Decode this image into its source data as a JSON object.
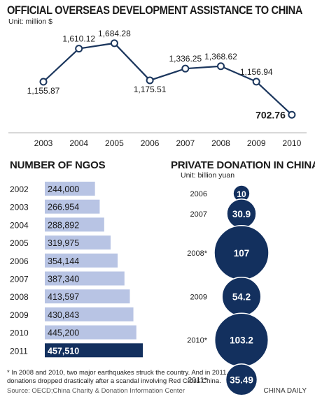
{
  "title": "OFFICIAL OVERSEAS DEVELOPMENT ASSISTANCE TO CHINA",
  "oda_unit": "Unit: million $",
  "oda_chart": {
    "type": "line",
    "x": [
      "2003",
      "2004",
      "2005",
      "2006",
      "2007",
      "2008",
      "2009",
      "2010"
    ],
    "y": [
      1155.87,
      1610.12,
      1684.28,
      1175.51,
      1336.25,
      1368.62,
      1156.94,
      702.76
    ],
    "labels": [
      "1,155.87",
      "1,610.12",
      "1,684.28",
      "1,175.51",
      "1,336.25",
      "1,368.62",
      "1,156.94",
      "702.76"
    ],
    "highlight_index": 7,
    "ylim": [
      600,
      1750
    ],
    "line_color": "#1b365d"
  },
  "ngo_title": "NUMBER OF NGOS",
  "ngo_chart": {
    "type": "bar",
    "categories": [
      "2002",
      "2003",
      "2004",
      "2005",
      "2006",
      "2007",
      "2008",
      "2009",
      "2010",
      "2011"
    ],
    "values": [
      244000,
      266954,
      288892,
      319975,
      354144,
      387340,
      413597,
      430843,
      445200,
      457510
    ],
    "labels": [
      "244,000",
      "266.954",
      "288,892",
      "319,975",
      "354,144",
      "387,340",
      "413,597",
      "430,843",
      "445,200",
      "457,510"
    ],
    "highlight_index": 9,
    "bar_color": "#b8c4e4",
    "highlight_color": "#13305e"
  },
  "donation_title": "PRIVATE DONATION IN CHINA",
  "donation_unit": "Unit: billion yuan",
  "donation_chart": {
    "type": "bubble",
    "categories": [
      "2006",
      "2007",
      "2008*",
      "2009",
      "2010*",
      "2011*"
    ],
    "values": [
      10,
      30.9,
      107,
      54.2,
      103.2,
      35.49
    ],
    "labels": [
      "10",
      "30.9",
      "107",
      "54.2",
      "103.2",
      "35.49"
    ],
    "bubble_color": "#13305e"
  },
  "footnote": "* In 2008 and 2010, two major earthquakes struck the country. And in 2011, donations dropped drastically after a scandal involving Red Cross China.",
  "source": "Source: OECD;China Charity & Donation Information Center",
  "credit": "CHINA DAILY"
}
